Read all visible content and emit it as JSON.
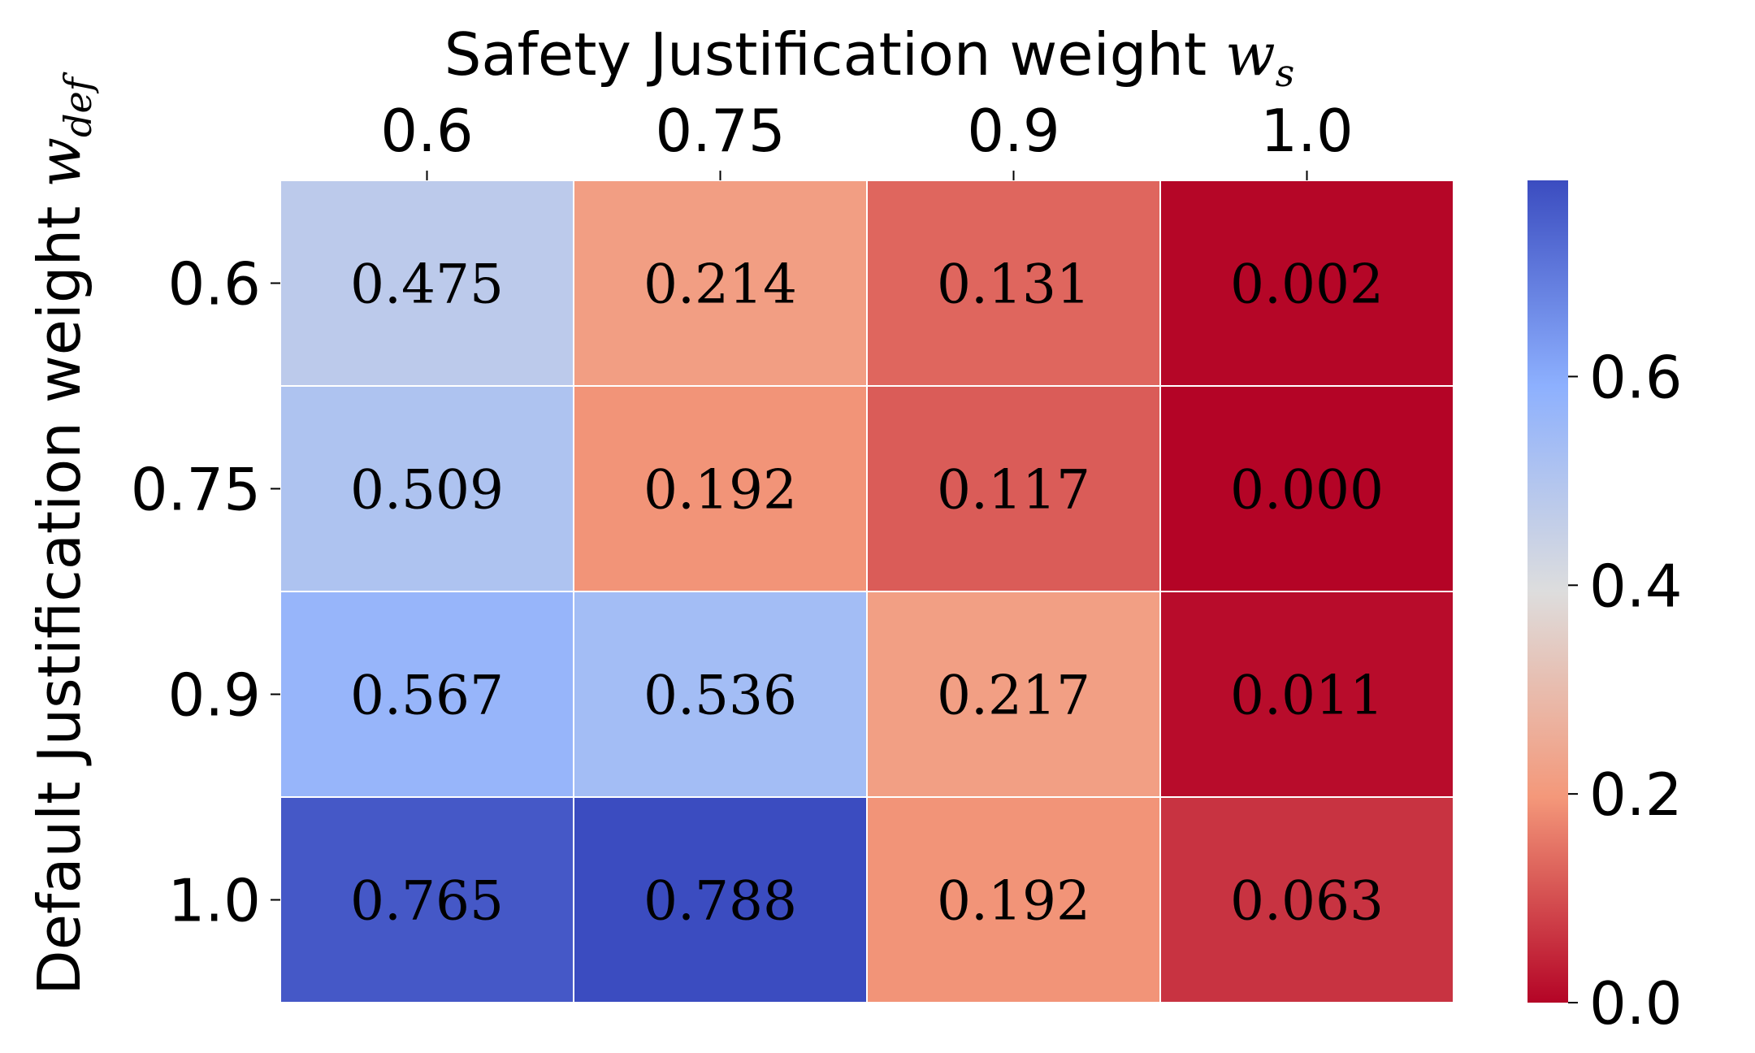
{
  "chart_data": {
    "type": "heatmap",
    "x_title": "Safety Justification weight ",
    "x_symbol": "w",
    "x_symbol_sub": "s",
    "y_title": "Default Justification weight ",
    "y_symbol": "w",
    "y_symbol_sub": "def",
    "x_categories": [
      "0.6",
      "0.75",
      "0.9",
      "1.0"
    ],
    "y_categories": [
      "0.6",
      "0.75",
      "0.9",
      "1.0"
    ],
    "values": [
      [
        0.475,
        0.214,
        0.131,
        0.002
      ],
      [
        0.509,
        0.192,
        0.117,
        0.0
      ],
      [
        0.567,
        0.536,
        0.217,
        0.011
      ],
      [
        0.765,
        0.788,
        0.192,
        0.063
      ]
    ],
    "value_labels": [
      [
        "0.475",
        "0.214",
        "0.131",
        "0.002"
      ],
      [
        "0.509",
        "0.192",
        "0.117",
        "0.000"
      ],
      [
        "0.567",
        "0.536",
        "0.217",
        "0.011"
      ],
      [
        "0.765",
        "0.788",
        "0.192",
        "0.063"
      ]
    ],
    "colormap": "coolwarm_r",
    "vmin": 0.0,
    "vmax": 0.788,
    "colorbar_ticks": [
      "0.0",
      "0.2",
      "0.4",
      "0.6"
    ],
    "colorbar_tick_values": [
      0.0,
      0.2,
      0.4,
      0.6
    ],
    "x_axis_position": "top",
    "colorbar_position": "right",
    "grid": false
  }
}
